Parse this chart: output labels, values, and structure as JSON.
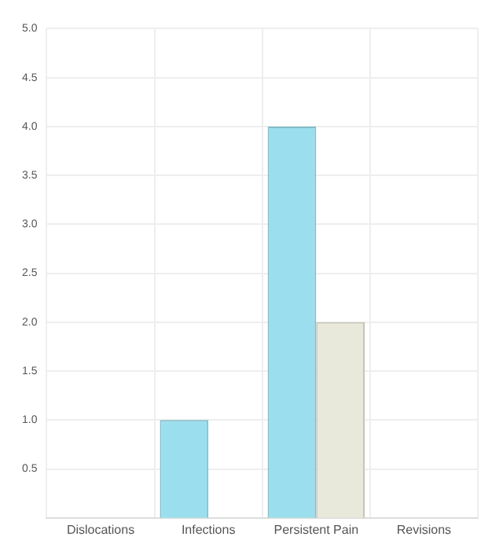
{
  "chart_data": {
    "type": "bar",
    "categories": [
      "Dislocations",
      "Infections",
      "Persistent Pain",
      "Revisions"
    ],
    "series": [
      {
        "color": "#9bdfee",
        "values": [
          0,
          1,
          4,
          0
        ]
      },
      {
        "color": "#e8e9da",
        "values": [
          0,
          0,
          2,
          0
        ]
      }
    ],
    "ylim": [
      0,
      5
    ],
    "yticks": [
      0.5,
      {
        "value": 1,
        "label": "1.0"
      },
      1.5,
      {
        "value": 2,
        "label": "2.0"
      },
      2.5,
      {
        "value": 3,
        "label": "3.0"
      },
      3.5,
      {
        "value": 4,
        "label": "4.0"
      },
      4.5,
      {
        "value": 5,
        "label": "5.0"
      }
    ],
    "grid": true,
    "legend": false
  }
}
